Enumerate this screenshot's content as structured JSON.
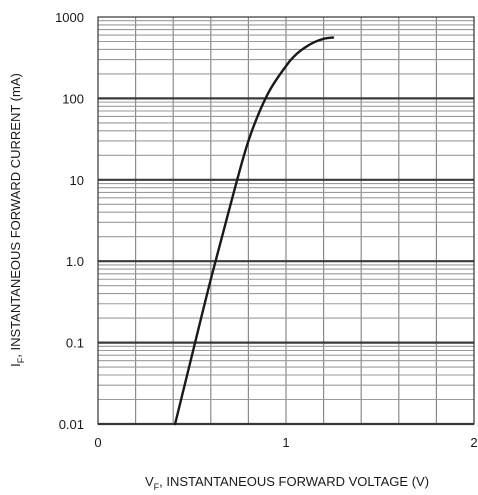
{
  "chart_data": {
    "type": "line",
    "xlabel": {
      "main": "V",
      "sub": "F",
      "rest": ", INSTANTANEOUS FORWARD VOLTAGE (V)"
    },
    "ylabel": {
      "main": "I",
      "sub": "F",
      "rest": ", INSTANTANEOUS FORWARD CURRENT (mA)"
    },
    "x_tick_labels": [
      "0",
      "1",
      "2"
    ],
    "y_tick_labels": [
      "0.01",
      "0.1",
      "1.0",
      "10",
      "100",
      "1000"
    ],
    "xlim": [
      0,
      2
    ],
    "ylim": [
      0.01,
      1000
    ],
    "y_scale": "log",
    "grid": true,
    "series": [
      {
        "x": [
          0.41,
          0.5,
          0.6,
          0.7,
          0.8,
          0.9,
          1.0,
          1.05,
          1.1,
          1.15,
          1.2,
          1.25
        ],
        "y": [
          0.01,
          0.07,
          0.6,
          4.5,
          30,
          110,
          250,
          340,
          420,
          490,
          540,
          560
        ]
      }
    ],
    "line_color": "#1a1a1a"
  }
}
